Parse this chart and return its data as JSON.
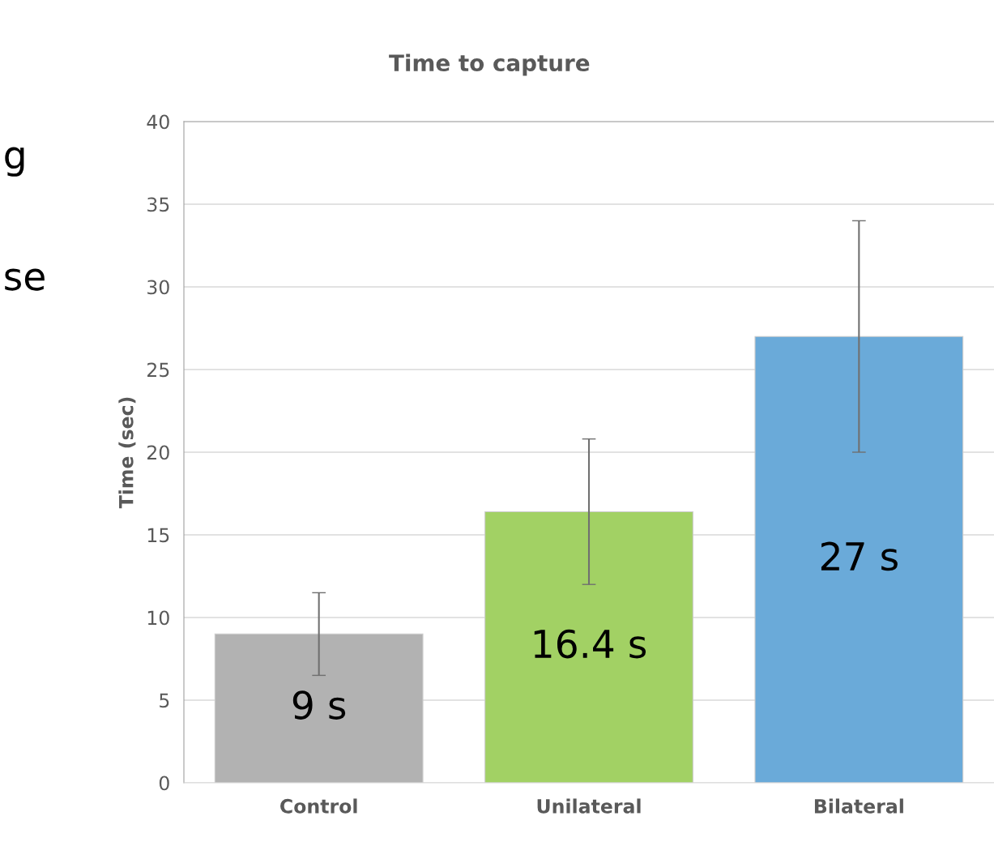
{
  "chart_data": {
    "type": "bar",
    "title": "Time to capture",
    "ylabel": "Time (sec)",
    "categories": [
      "Control",
      "Unilateral",
      "Bilateral"
    ],
    "values": [
      9,
      16.4,
      27
    ],
    "colors": [
      "#b2b2b2",
      "#a2d164",
      "#6aaad9"
    ],
    "errors": [
      2.5,
      4.4,
      7
    ],
    "value_labels": [
      "9 s",
      "16.4 s",
      "27 s"
    ],
    "ylim": [
      0,
      40
    ],
    "yticks": [
      0,
      5,
      10,
      15,
      20,
      25,
      30,
      35,
      40
    ],
    "grid": "y",
    "annotations": [
      "g",
      "se"
    ]
  }
}
